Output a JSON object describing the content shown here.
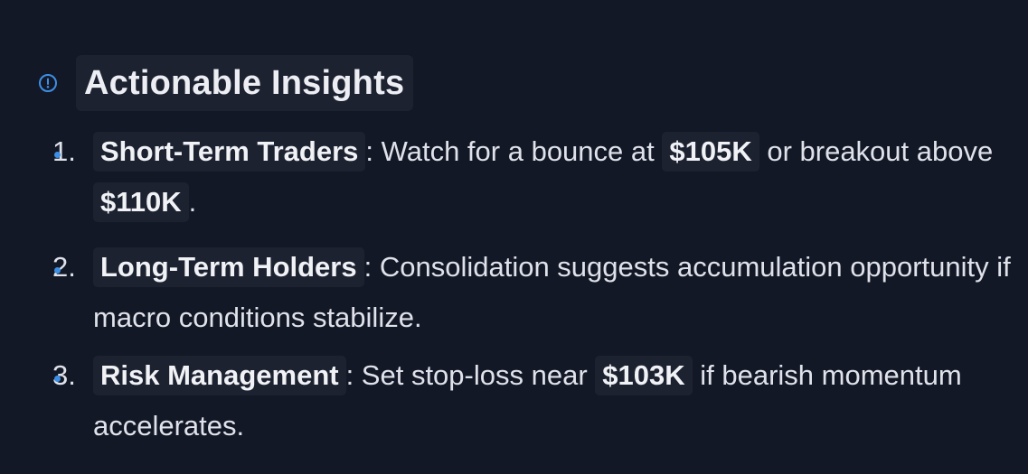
{
  "section": {
    "icon": "alert-circle-icon",
    "title": "Actionable Insights",
    "accent_color": "#3d8fe6"
  },
  "insights": [
    {
      "number": "1.",
      "label": "Short-Term Traders",
      "text_a": ": Watch for a bounce at ",
      "price_a": "$105K",
      "text_b": " or breakout above ",
      "price_b": "$110K",
      "text_c": "."
    },
    {
      "number": "2.",
      "label": "Long-Term Holders",
      "text_a": ": Consolidation suggests accumulation opportunity if macro conditions stabilize."
    },
    {
      "number": "3.",
      "label": "Risk Management",
      "text_a": ": Set stop-loss near ",
      "price_a": "$103K",
      "text_b": " if bearish momentum accelerates."
    }
  ]
}
